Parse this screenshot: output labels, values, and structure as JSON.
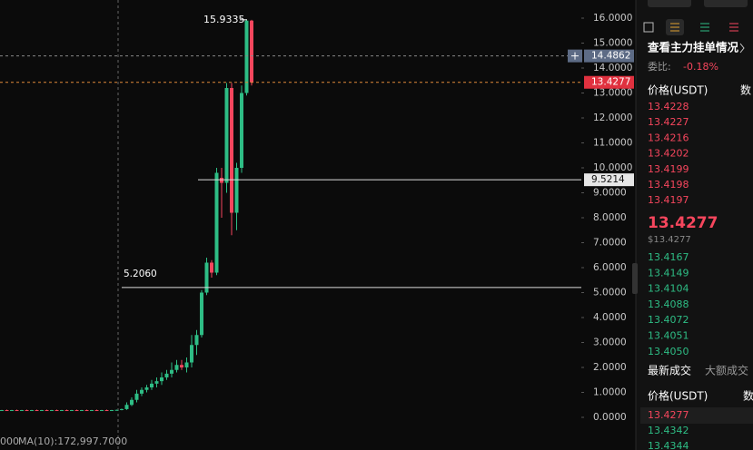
{
  "chart_data": {
    "type": "candlestick",
    "ylim": [
      -1.309,
      16.727
    ],
    "yticks": [
      {
        "value": 16,
        "label": "16.0000"
      },
      {
        "value": 15,
        "label": "15.0000"
      },
      {
        "value": 14,
        "label": "14.0000"
      },
      {
        "value": 13,
        "label": "13.0000"
      },
      {
        "value": 12,
        "label": "12.0000"
      },
      {
        "value": 11,
        "label": "11.0000"
      },
      {
        "value": 10,
        "label": "10.0000"
      },
      {
        "value": 9,
        "label": "9.0000"
      },
      {
        "value": 8,
        "label": "8.0000"
      },
      {
        "value": 7,
        "label": "7.0000"
      },
      {
        "value": 6,
        "label": "6.0000"
      },
      {
        "value": 5,
        "label": "5.0000"
      },
      {
        "value": 4,
        "label": "4.0000"
      },
      {
        "value": 3,
        "label": "3.0000"
      },
      {
        "value": 2,
        "label": "2.0000"
      },
      {
        "value": 1,
        "label": "1.0000"
      },
      {
        "value": 0,
        "label": "0.0000"
      }
    ],
    "open": [
      0.28,
      0.29,
      0.28,
      0.29,
      0.28,
      0.29,
      0.28,
      0.29,
      0.28,
      0.29,
      0.28,
      0.29,
      0.28,
      0.29,
      0.28,
      0.29,
      0.28,
      0.29,
      0.28,
      0.29,
      0.28,
      0.29,
      0.28,
      0.29,
      0.3,
      0.33,
      0.5,
      0.7,
      0.95,
      1.1,
      1.2,
      1.35,
      1.45,
      1.6,
      1.75,
      1.9,
      2.1,
      2.0,
      2.2,
      2.9,
      3.3,
      5.0,
      6.2,
      5.8,
      9.6,
      9.4,
      13.2,
      8.2,
      10.0,
      13.0,
      15.9
    ],
    "high": [
      0.3,
      0.31,
      0.3,
      0.31,
      0.3,
      0.31,
      0.3,
      0.31,
      0.3,
      0.31,
      0.3,
      0.31,
      0.3,
      0.31,
      0.3,
      0.31,
      0.3,
      0.31,
      0.3,
      0.31,
      0.3,
      0.31,
      0.3,
      0.31,
      0.35,
      0.6,
      0.8,
      1.1,
      1.2,
      1.3,
      1.5,
      1.6,
      1.8,
      1.9,
      2.2,
      2.3,
      2.3,
      2.4,
      3.3,
      3.5,
      5.1,
      6.4,
      6.3,
      10.0,
      10.0,
      13.4,
      13.4,
      10.2,
      13.3,
      15.95,
      15.93
    ],
    "low": [
      0.26,
      0.27,
      0.26,
      0.27,
      0.26,
      0.27,
      0.26,
      0.27,
      0.26,
      0.27,
      0.26,
      0.27,
      0.26,
      0.27,
      0.26,
      0.27,
      0.26,
      0.27,
      0.26,
      0.27,
      0.26,
      0.27,
      0.26,
      0.27,
      0.28,
      0.3,
      0.45,
      0.6,
      0.85,
      1.0,
      1.1,
      1.2,
      1.3,
      1.5,
      1.6,
      1.8,
      1.9,
      1.8,
      2.0,
      2.5,
      3.2,
      4.9,
      5.6,
      5.7,
      8.0,
      9.0,
      7.3,
      7.5,
      9.8,
      12.9,
      13.3
    ],
    "close": [
      0.29,
      0.28,
      0.29,
      0.28,
      0.29,
      0.28,
      0.29,
      0.28,
      0.29,
      0.28,
      0.29,
      0.28,
      0.29,
      0.28,
      0.29,
      0.28,
      0.29,
      0.28,
      0.29,
      0.28,
      0.29,
      0.28,
      0.29,
      0.3,
      0.33,
      0.5,
      0.7,
      0.95,
      1.1,
      1.2,
      1.35,
      1.45,
      1.6,
      1.75,
      1.9,
      2.1,
      2.0,
      2.2,
      2.9,
      3.3,
      5.0,
      6.2,
      5.8,
      9.8,
      9.4,
      13.2,
      8.2,
      10.0,
      13.0,
      15.9,
      13.4277
    ],
    "high_label": 15.9335,
    "lines": [
      {
        "value": 14.4862,
        "label": "14.4862"
      },
      {
        "value": 13.4277,
        "label": "13.4277"
      },
      {
        "value": 9.5214,
        "label": "9.5214"
      },
      {
        "value": 5.206,
        "label": "5.2060"
      }
    ],
    "left_label": "000",
    "ma_label": "MA(10):172,997.7000"
  },
  "panel": {
    "title": "查看主力挂单情况",
    "ratio_label": "委比:",
    "ratio": "-0.18%",
    "price_header": "价格(USDT)",
    "qty_header": "数",
    "asks": [
      "13.4228",
      "13.4227",
      "13.4216",
      "13.4202",
      "13.4199",
      "13.4198",
      "13.4197"
    ],
    "last_price": "13.4277",
    "last_price_usd": "$13.4277",
    "bids": [
      "13.4167",
      "13.4149",
      "13.4104",
      "13.4088",
      "13.4072",
      "13.4051",
      "13.4050"
    ],
    "tabs": [
      "最新成交",
      "大额成交"
    ],
    "trades_price_header": "价格(USDT)",
    "trades_qty_header": "数",
    "trades": [
      "13.4277",
      "13.4342",
      "13.4344"
    ]
  }
}
